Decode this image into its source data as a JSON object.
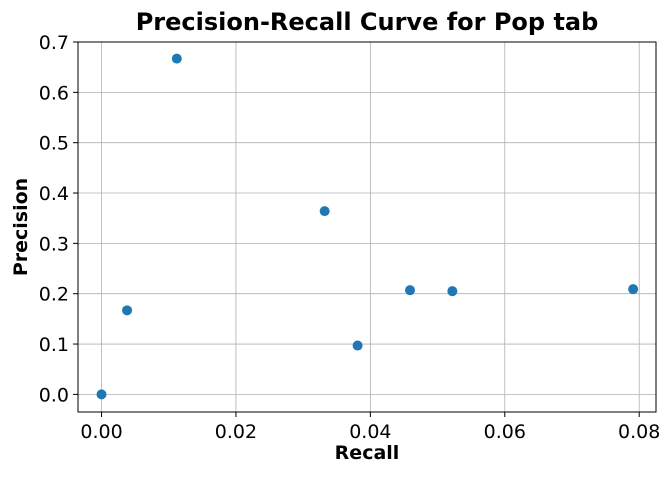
{
  "chart_data": {
    "type": "scatter",
    "title": "Precision-Recall Curve for Pop tab",
    "xlabel": "Recall",
    "ylabel": "Precision",
    "xlim": [
      -0.0035,
      0.0825
    ],
    "ylim": [
      -0.035,
      0.7
    ],
    "xticks": [
      0.0,
      0.02,
      0.04,
      0.06,
      0.08
    ],
    "xtick_labels": [
      "0.00",
      "0.02",
      "0.04",
      "0.06",
      "0.08"
    ],
    "yticks": [
      0.0,
      0.1,
      0.2,
      0.3,
      0.4,
      0.5,
      0.6,
      0.7
    ],
    "ytick_labels": [
      "0.0",
      "0.1",
      "0.2",
      "0.3",
      "0.4",
      "0.5",
      "0.6",
      "0.7"
    ],
    "grid": true,
    "point_color": "#1f77b4",
    "points": [
      {
        "x": 0.0,
        "y": 0.0
      },
      {
        "x": 0.0038,
        "y": 0.167
      },
      {
        "x": 0.0112,
        "y": 0.667
      },
      {
        "x": 0.0332,
        "y": 0.364
      },
      {
        "x": 0.0381,
        "y": 0.097
      },
      {
        "x": 0.0459,
        "y": 0.207
      },
      {
        "x": 0.0522,
        "y": 0.205
      },
      {
        "x": 0.0791,
        "y": 0.209
      }
    ]
  }
}
